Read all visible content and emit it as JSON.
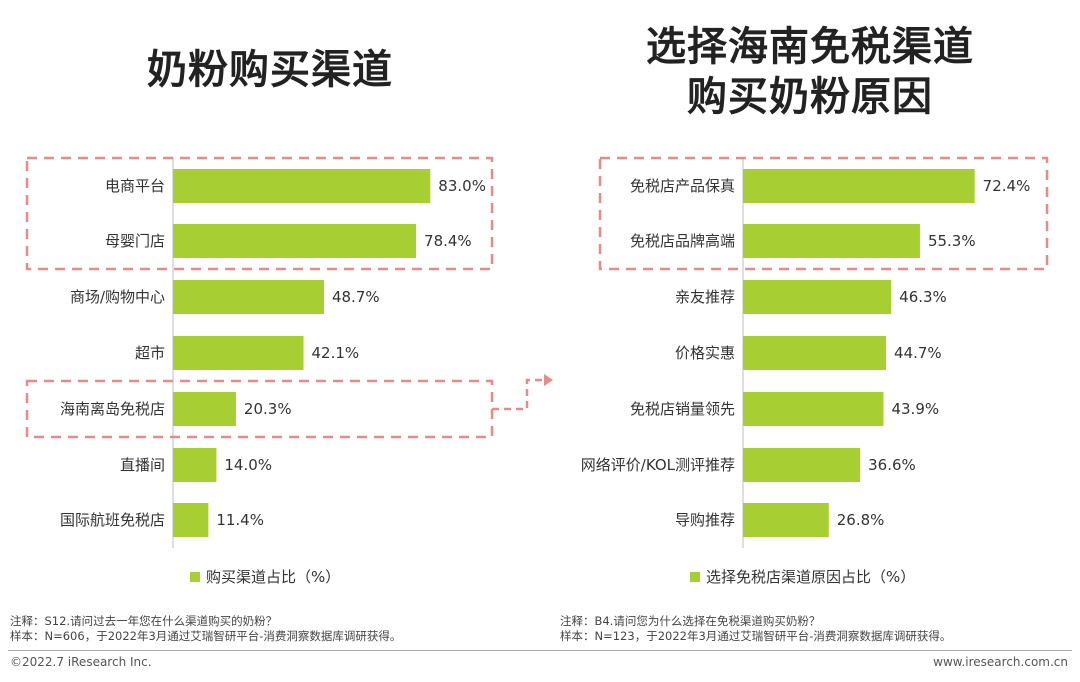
{
  "titles": {
    "left": "奶粉购买渠道",
    "right_line1": "选择海南免税渠道",
    "right_line2": "购买奶粉原因"
  },
  "colors": {
    "bar": "#A7CE32",
    "highlight_dash": "#E98A8A",
    "axis": "#BFBFBF"
  },
  "chart_data": [
    {
      "type": "bar",
      "orientation": "horizontal",
      "categories": [
        "电商平台",
        "母婴门店",
        "商场/购物中心",
        "超市",
        "海南离岛免税店",
        "直播间",
        "国际航班免税店"
      ],
      "values": [
        83.0,
        78.4,
        48.7,
        42.1,
        20.3,
        14.0,
        11.4
      ],
      "value_labels": [
        "83.0%",
        "78.4%",
        "48.7%",
        "42.1%",
        "20.3%",
        "14.0%",
        "11.4%"
      ],
      "series": [
        {
          "name": "购买渠道占比（%）",
          "values": [
            83.0,
            78.4,
            48.7,
            42.1,
            20.3,
            14.0,
            11.4
          ]
        }
      ],
      "highlighted_groups": [
        [
          0,
          1
        ],
        [
          4
        ]
      ],
      "legend": "bottom"
    },
    {
      "type": "bar",
      "orientation": "horizontal",
      "categories": [
        "免税店产品保真",
        "免税店品牌高端",
        "亲友推荐",
        "价格实惠",
        "免税店销量领先",
        "网络评价/KOL测评推荐",
        "导购推荐"
      ],
      "values": [
        72.4,
        55.3,
        46.3,
        44.7,
        43.9,
        36.6,
        26.8
      ],
      "value_labels": [
        "72.4%",
        "55.3%",
        "46.3%",
        "44.7%",
        "43.9%",
        "36.6%",
        "26.8%"
      ],
      "series": [
        {
          "name": "选择免税店渠道原因占比（%）",
          "values": [
            72.4,
            55.3,
            46.3,
            44.7,
            43.9,
            36.6,
            26.8
          ]
        }
      ],
      "highlighted_groups": [
        [
          0,
          1
        ]
      ],
      "legend": "bottom"
    }
  ],
  "legend": {
    "left": "购买渠道占比（%）",
    "right": "选择免税店渠道原因占比（%）"
  },
  "notes": {
    "left_line1": "注释：S12.请问过去一年您在什么渠道购买的奶粉？",
    "left_line2": "样本：N=606，于2022年3月通过艾瑞智研平台-消费洞察数据库调研获得。",
    "right_line1": "注释：B4.请问您为什么选择在免税渠道购买奶粉？",
    "right_line2": "样本：N=123，于2022年3月通过艾瑞智研平台-消费洞察数据库调研获得。"
  },
  "footer": {
    "copyright": "©2022.7 iResearch Inc.",
    "website": "www.iresearch.com.cn"
  }
}
